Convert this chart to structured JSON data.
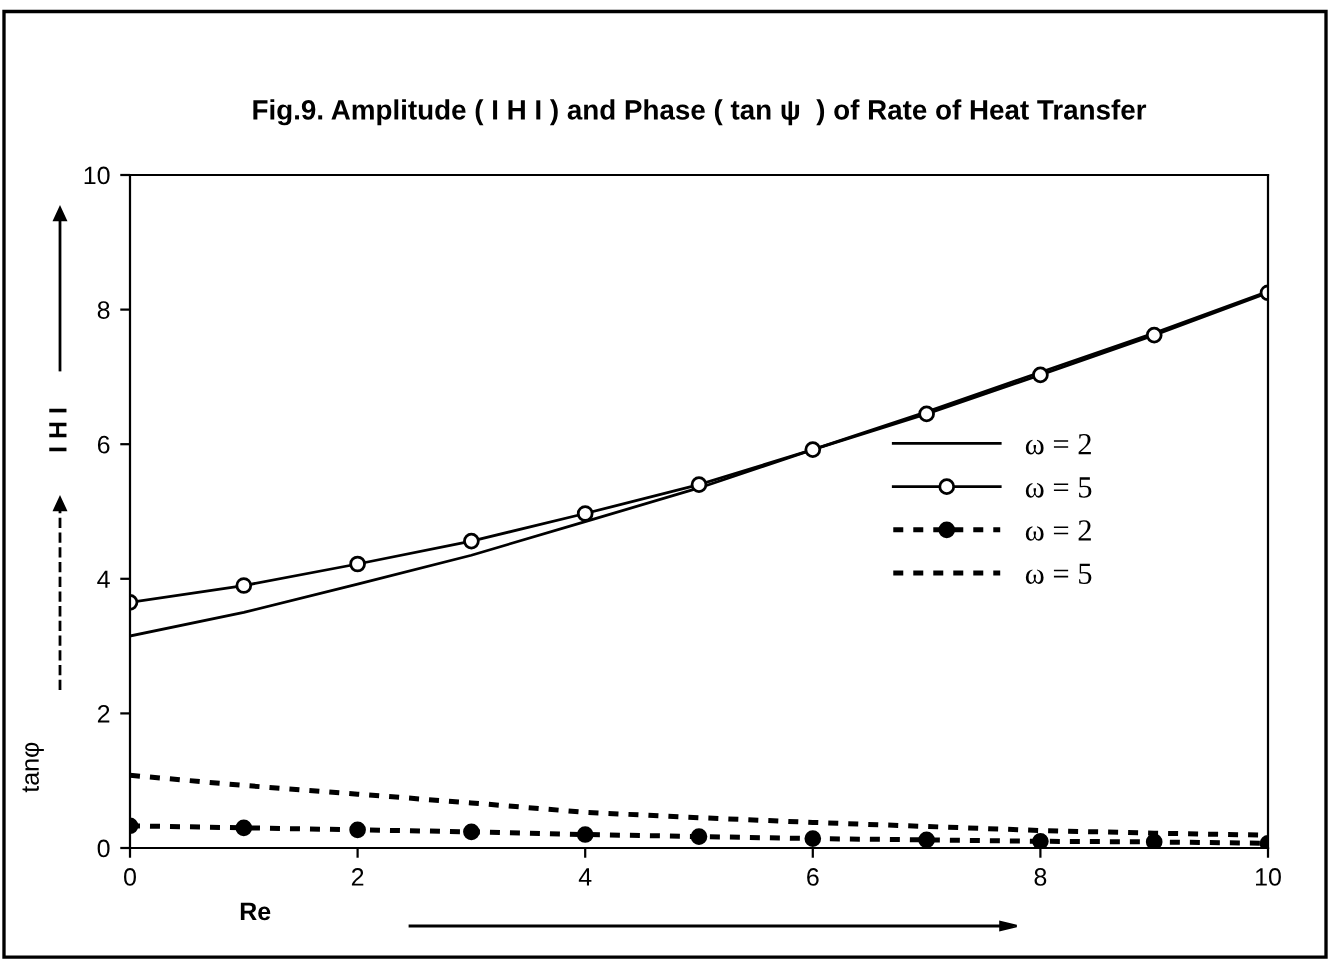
{
  "chart_data": {
    "type": "line",
    "title": "Fig.9. Amplitude ( I H I ) and Phase ( tan ψ  ) of Rate of Heat Transfer",
    "xlabel": "Re",
    "ylabel": "tanφ",
    "annotations": [
      "I H I"
    ],
    "x": [
      0,
      1,
      2,
      3,
      4,
      5,
      6,
      7,
      8,
      9,
      10
    ],
    "series": [
      {
        "name": "ω = 2",
        "color": "#000000",
        "line_style": "solid",
        "marker": "none",
        "values": [
          3.15,
          3.5,
          3.92,
          4.35,
          4.85,
          5.35,
          5.92,
          6.48,
          7.07,
          7.65,
          8.27
        ]
      },
      {
        "name": "ω = 5",
        "color": "#000000",
        "line_style": "solid",
        "marker": "circle",
        "values": [
          3.65,
          3.9,
          4.22,
          4.56,
          4.97,
          5.4,
          5.92,
          6.45,
          7.03,
          7.62,
          8.25
        ]
      },
      {
        "name": "ω = 2",
        "color": "#000000",
        "line_style": "dotted",
        "marker": "circle",
        "values": [
          0.33,
          0.3,
          0.27,
          0.24,
          0.2,
          0.17,
          0.14,
          0.12,
          0.1,
          0.09,
          0.07
        ]
      },
      {
        "name": "ω = 5",
        "color": "#000000",
        "line_style": "dotted",
        "marker": "none",
        "values": [
          1.08,
          0.93,
          0.8,
          0.67,
          0.53,
          0.45,
          0.38,
          0.32,
          0.26,
          0.22,
          0.19
        ]
      }
    ],
    "xlim": [
      0,
      10
    ],
    "xticks": [
      0,
      2,
      4,
      6,
      8,
      10
    ],
    "ylim": [
      0,
      10
    ],
    "yticks": [
      0,
      2,
      4,
      6,
      8,
      10
    ],
    "grid": false,
    "legend": "right"
  }
}
